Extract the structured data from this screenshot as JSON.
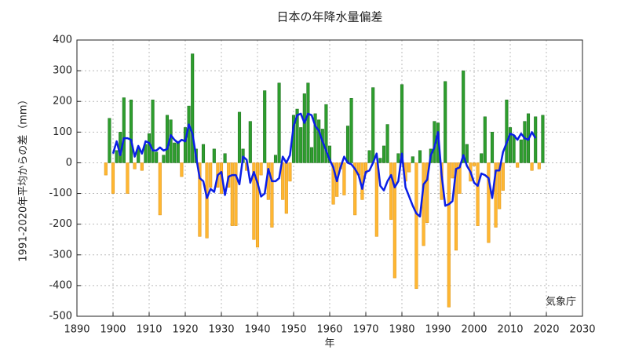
{
  "chart_data": {
    "type": "bar",
    "title": "日本の年降水量偏差",
    "x_label": "年",
    "y_label": "1991-2020年平均からの差（mm）",
    "annotation": "気象庁",
    "xlim": [
      1890,
      2030
    ],
    "xticks": [
      1890,
      1900,
      1910,
      1920,
      1930,
      1940,
      1950,
      1960,
      1970,
      1980,
      1990,
      2000,
      2010,
      2020,
      2030
    ],
    "ylim": [
      -500,
      400
    ],
    "yticks": [
      -500,
      -400,
      -300,
      -200,
      -100,
      0,
      100,
      200,
      300,
      400
    ],
    "grid": true,
    "positive_color": "#2e9e2e",
    "negative_color": "#ffb732",
    "x": [
      1898,
      1899,
      1900,
      1901,
      1902,
      1903,
      1904,
      1905,
      1906,
      1907,
      1908,
      1909,
      1910,
      1911,
      1912,
      1913,
      1914,
      1915,
      1916,
      1917,
      1918,
      1919,
      1920,
      1921,
      1922,
      1923,
      1924,
      1925,
      1926,
      1927,
      1928,
      1929,
      1930,
      1931,
      1932,
      1933,
      1934,
      1935,
      1936,
      1937,
      1938,
      1939,
      1940,
      1941,
      1942,
      1943,
      1944,
      1945,
      1946,
      1947,
      1948,
      1949,
      1950,
      1951,
      1952,
      1953,
      1954,
      1955,
      1956,
      1957,
      1958,
      1959,
      1960,
      1961,
      1962,
      1963,
      1964,
      1965,
      1966,
      1967,
      1968,
      1969,
      1970,
      1971,
      1972,
      1973,
      1974,
      1975,
      1976,
      1977,
      1978,
      1979,
      1980,
      1981,
      1982,
      1983,
      1984,
      1985,
      1986,
      1987,
      1988,
      1989,
      1990,
      1991,
      1992,
      1993,
      1994,
      1995,
      1996,
      1997,
      1998,
      1999,
      2000,
      2001,
      2002,
      2003,
      2004,
      2005,
      2006,
      2007,
      2008,
      2009,
      2010,
      2011,
      2012,
      2013,
      2014,
      2015,
      2016,
      2017,
      2018,
      2019
    ],
    "values": [
      -40,
      145,
      -100,
      40,
      100,
      212,
      -100,
      205,
      -20,
      50,
      -25,
      60,
      95,
      205,
      35,
      -170,
      25,
      155,
      140,
      65,
      70,
      -45,
      115,
      185,
      355,
      45,
      -240,
      60,
      -245,
      -80,
      45,
      -80,
      -100,
      30,
      -80,
      -205,
      -205,
      165,
      45,
      -25,
      135,
      -250,
      -275,
      -40,
      235,
      -120,
      -210,
      25,
      260,
      -120,
      -165,
      -60,
      155,
      175,
      115,
      225,
      260,
      50,
      160,
      140,
      110,
      190,
      55,
      -135,
      -110,
      -20,
      -105,
      120,
      210,
      -170,
      -40,
      -120,
      -35,
      40,
      245,
      -240,
      15,
      55,
      125,
      -185,
      -375,
      30,
      255,
      -60,
      -30,
      20,
      -410,
      40,
      -270,
      -195,
      45,
      135,
      130,
      -120,
      265,
      -470,
      -50,
      -285,
      -100,
      300,
      60,
      -60,
      -10,
      -205,
      30,
      150,
      -260,
      100,
      -210,
      -150,
      -90,
      205,
      115,
      90,
      -15,
      75,
      135,
      160,
      -25,
      150,
      -20,
      155
    ],
    "line": {
      "type": "line",
      "color": "#0a1ee6",
      "x": [
        1900,
        1901,
        1902,
        1903,
        1904,
        1905,
        1906,
        1907,
        1908,
        1909,
        1910,
        1911,
        1912,
        1913,
        1914,
        1915,
        1916,
        1917,
        1918,
        1919,
        1920,
        1921,
        1922,
        1923,
        1924,
        1925,
        1926,
        1927,
        1928,
        1929,
        1930,
        1931,
        1932,
        1933,
        1934,
        1935,
        1936,
        1937,
        1938,
        1939,
        1940,
        1941,
        1942,
        1943,
        1944,
        1945,
        1946,
        1947,
        1948,
        1949,
        1950,
        1951,
        1952,
        1953,
        1954,
        1955,
        1956,
        1957,
        1958,
        1959,
        1960,
        1961,
        1962,
        1963,
        1964,
        1965,
        1966,
        1967,
        1968,
        1969,
        1970,
        1971,
        1972,
        1973,
        1974,
        1975,
        1976,
        1977,
        1978,
        1979,
        1980,
        1981,
        1982,
        1983,
        1984,
        1985,
        1986,
        1987,
        1988,
        1989,
        1990,
        1991,
        1992,
        1993,
        1994,
        1995,
        1996,
        1997,
        1998,
        1999,
        2000,
        2001,
        2002,
        2003,
        2004,
        2005,
        2006,
        2007,
        2008,
        2009,
        2010,
        2011,
        2012,
        2013,
        2014,
        2015,
        2016,
        2017
      ],
      "values": [
        30,
        70,
        25,
        80,
        80,
        75,
        20,
        55,
        30,
        70,
        65,
        40,
        40,
        50,
        40,
        45,
        90,
        75,
        65,
        75,
        70,
        125,
        95,
        20,
        -50,
        -60,
        -115,
        -85,
        -95,
        -40,
        -30,
        -105,
        -45,
        -40,
        -40,
        -70,
        20,
        10,
        -65,
        -30,
        -65,
        -110,
        -100,
        -20,
        -60,
        -60,
        -50,
        20,
        0,
        25,
        120,
        155,
        160,
        130,
        160,
        155,
        120,
        105,
        70,
        40,
        10,
        -15,
        -60,
        -15,
        20,
        0,
        -5,
        -20,
        -40,
        -85,
        -30,
        -25,
        0,
        30,
        -75,
        -90,
        -60,
        -40,
        -80,
        -60,
        30,
        -80,
        -110,
        -140,
        -165,
        -175,
        -70,
        -55,
        25,
        50,
        100,
        -40,
        -140,
        -135,
        -125,
        -20,
        -15,
        25,
        -10,
        -30,
        -65,
        -75,
        -35,
        -40,
        -50,
        -115,
        -25,
        -25,
        35,
        65,
        95,
        90,
        75,
        95,
        80,
        75,
        100,
        80
      ]
    }
  }
}
